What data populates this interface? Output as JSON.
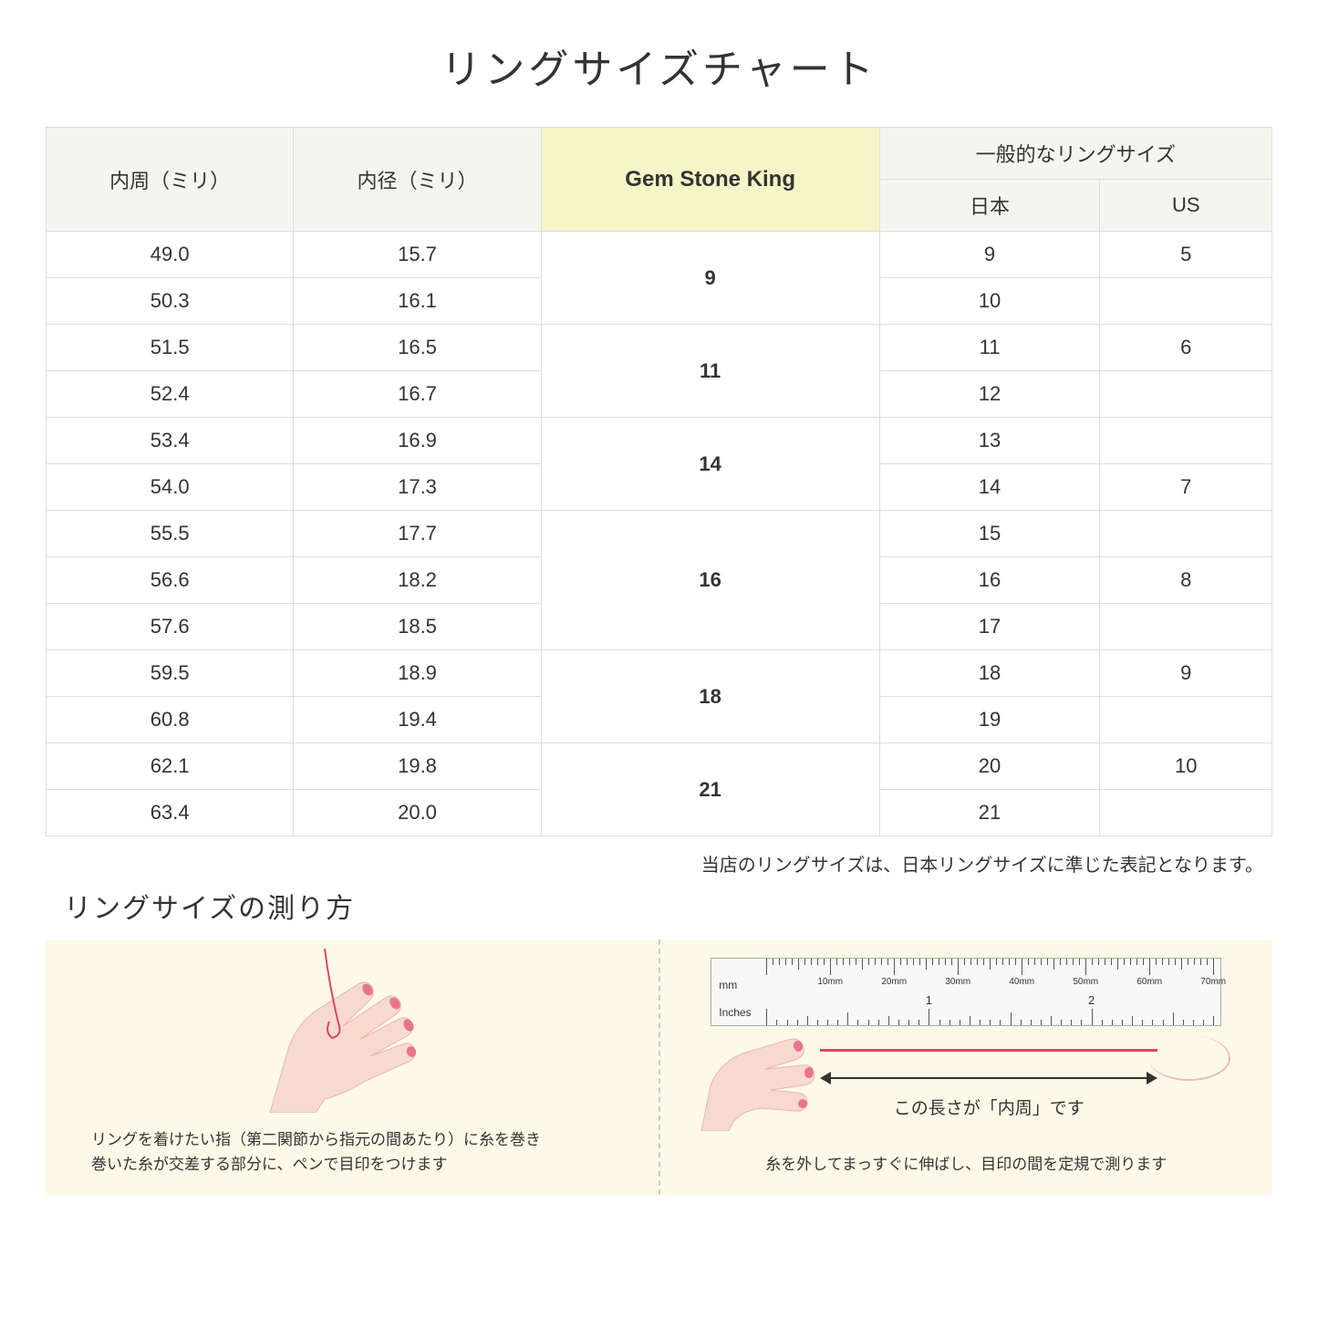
{
  "title": "リングサイズチャート",
  "headers": {
    "circumference": "内周（ミリ）",
    "diameter": "内径（ミリ）",
    "gsk": "Gem Stone King",
    "general": "一般的なリングサイズ",
    "japan": "日本",
    "us": "US"
  },
  "groups": [
    {
      "gsk": "9",
      "rows": [
        {
          "circ": "49.0",
          "dia": "15.7",
          "jp": "9",
          "us": "5"
        },
        {
          "circ": "50.3",
          "dia": "16.1",
          "jp": "10",
          "us": ""
        }
      ]
    },
    {
      "gsk": "11",
      "rows": [
        {
          "circ": "51.5",
          "dia": "16.5",
          "jp": "11",
          "us": "6"
        },
        {
          "circ": "52.4",
          "dia": "16.7",
          "jp": "12",
          "us": ""
        }
      ]
    },
    {
      "gsk": "14",
      "rows": [
        {
          "circ": "53.4",
          "dia": "16.9",
          "jp": "13",
          "us": ""
        },
        {
          "circ": "54.0",
          "dia": "17.3",
          "jp": "14",
          "us": "7"
        }
      ]
    },
    {
      "gsk": "16",
      "rows": [
        {
          "circ": "55.5",
          "dia": "17.7",
          "jp": "15",
          "us": ""
        },
        {
          "circ": "56.6",
          "dia": "18.2",
          "jp": "16",
          "us": "8"
        },
        {
          "circ": "57.6",
          "dia": "18.5",
          "jp": "17",
          "us": ""
        }
      ]
    },
    {
      "gsk": "18",
      "rows": [
        {
          "circ": "59.5",
          "dia": "18.9",
          "jp": "18",
          "us": "9"
        },
        {
          "circ": "60.8",
          "dia": "19.4",
          "jp": "19",
          "us": ""
        }
      ]
    },
    {
      "gsk": "21",
      "rows": [
        {
          "circ": "62.1",
          "dia": "19.8",
          "jp": "20",
          "us": "10"
        },
        {
          "circ": "63.4",
          "dia": "20.0",
          "jp": "21",
          "us": ""
        }
      ]
    }
  ],
  "note": "当店のリングサイズは、日本リングサイズに準じた表記となります。",
  "subtitle": "リングサイズの測り方",
  "instruction1": "リングを着けたい指（第二関節から指元の間あたり）に糸を巻き\n巻いた糸が交差する部分に、ペンで目印をつけます",
  "instruction2": "糸を外してまっすぐに伸ばし、目印の間を定規で測ります",
  "arrow_label": "この長さが「内周」です",
  "ruler": {
    "mm_label": "mm",
    "in_label": "Inches",
    "mm_marks": [
      "10mm",
      "20mm",
      "30mm",
      "40mm",
      "50mm",
      "60mm",
      "70mm"
    ],
    "in_marks": [
      "1",
      "2"
    ]
  },
  "colors": {
    "header_bg": "#f5f5f0",
    "gsk_bg": "#f5f5c8",
    "border": "#dddddd",
    "instruction_bg": "#fdf9e8",
    "hand_fill": "#f7d9cf",
    "nail_fill": "#e8758f",
    "thread": "#d94860"
  }
}
